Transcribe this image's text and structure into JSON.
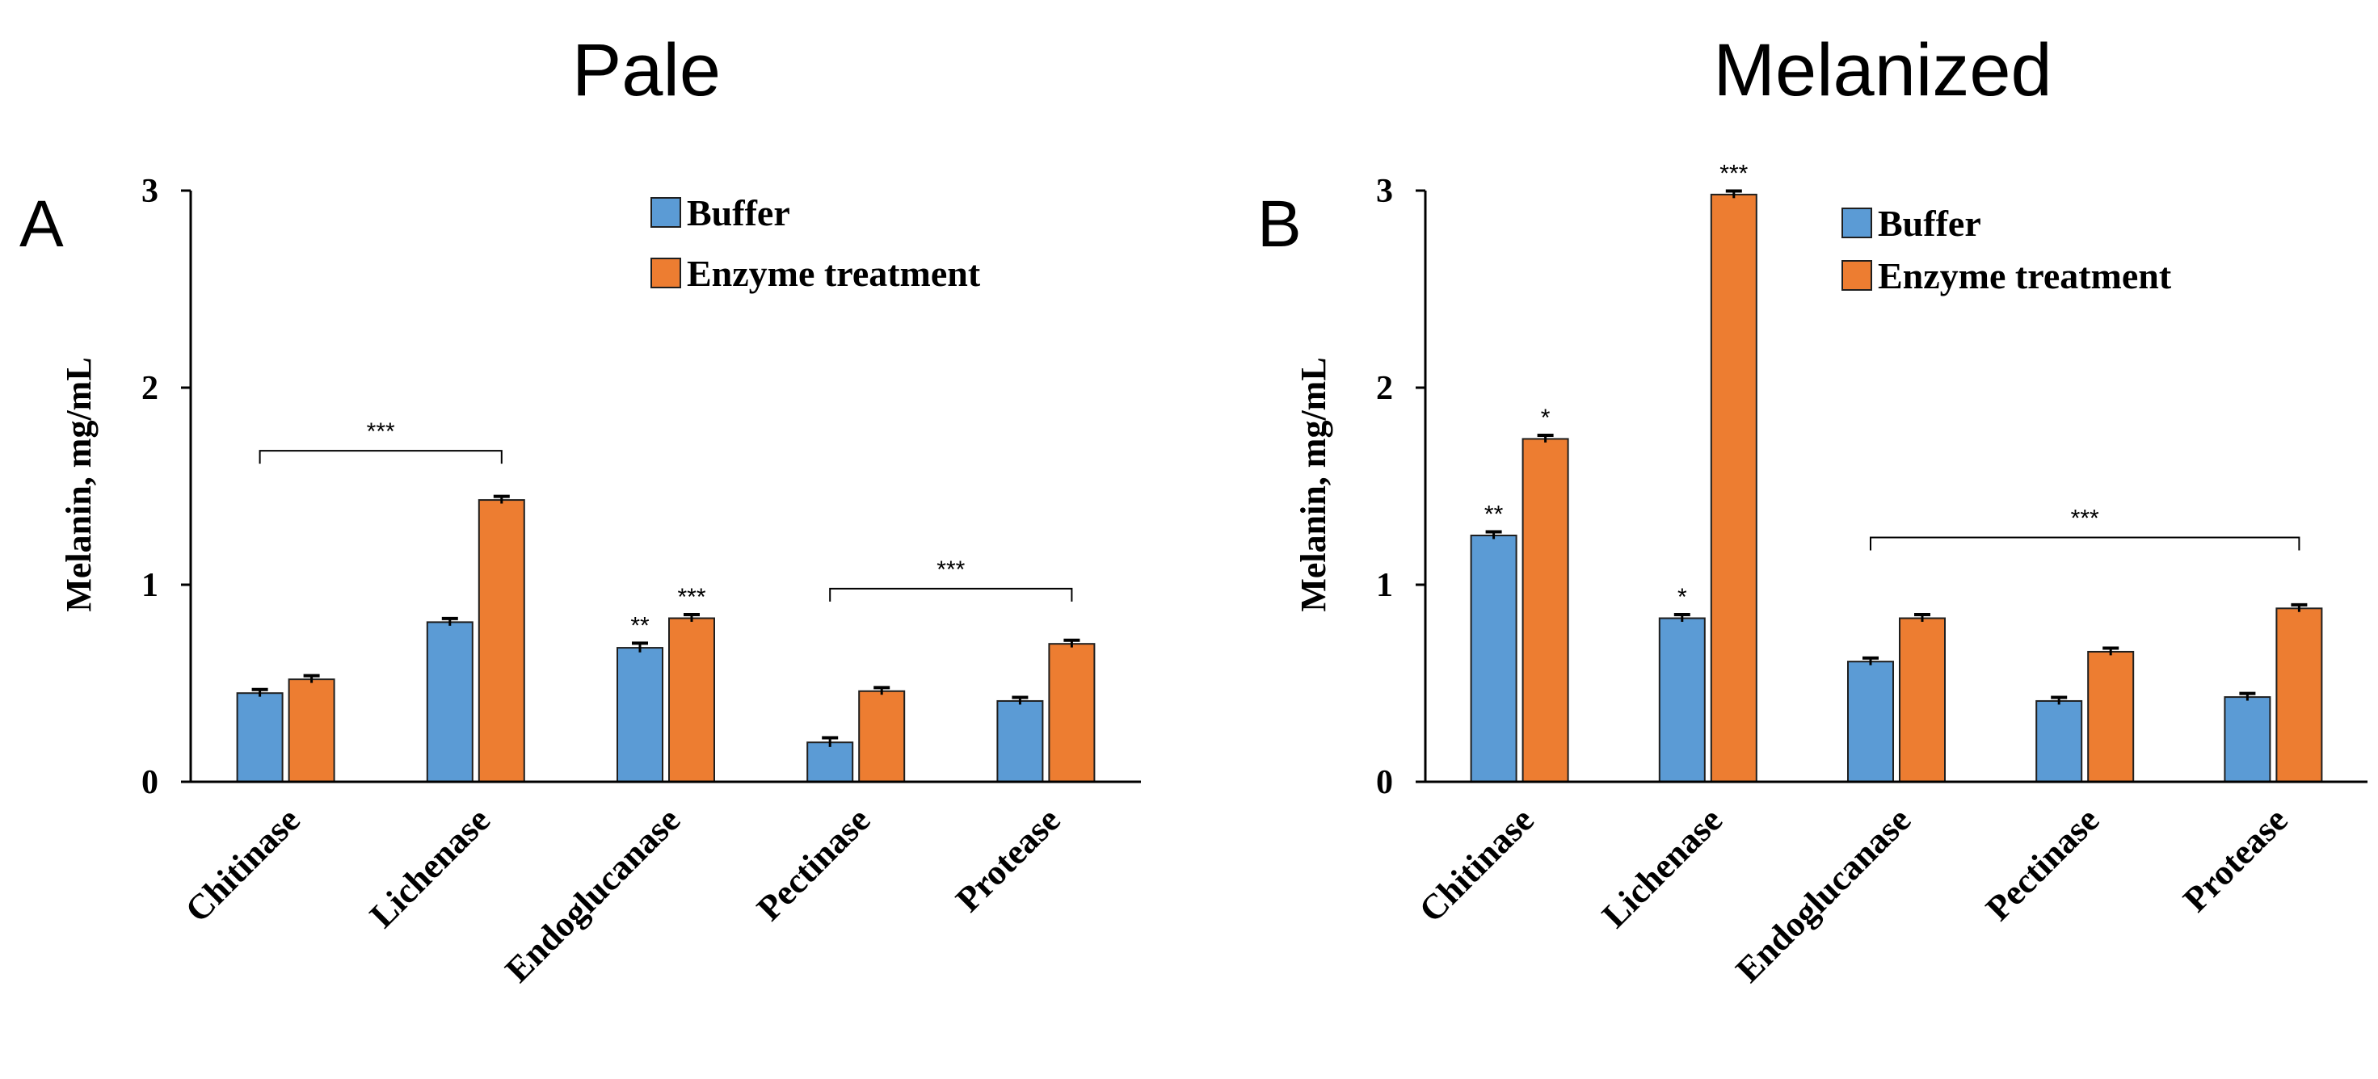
{
  "figure": {
    "colors": {
      "buffer": "#5B9BD5",
      "enzyme": "#ED7D31",
      "outline": "#1F1F1F"
    }
  },
  "chart_data": [
    {
      "type": "bar",
      "letter": "A",
      "title": "Pale",
      "xlabel": "",
      "ylabel": "Melanin, mg/mL",
      "ylim": [
        0,
        3
      ],
      "yticks": [
        "0",
        "1",
        "2",
        "3"
      ],
      "categories": [
        "Chitinase",
        "Lichenase",
        "Endoglucanase",
        "Pectinase",
        "Protease"
      ],
      "legend": {
        "position": "top-right"
      },
      "series": [
        {
          "name": "Buffer",
          "values": [
            0.45,
            0.81,
            0.68,
            0.2,
            0.41
          ],
          "errors": [
            0.01,
            0.01,
            0.015,
            0.015,
            0.01
          ],
          "significance": [
            "",
            "",
            "**",
            "",
            ""
          ]
        },
        {
          "name": "Enzyme treatment",
          "values": [
            0.52,
            1.43,
            0.83,
            0.46,
            0.7
          ],
          "errors": [
            0.01,
            0.01,
            0.01,
            0.01,
            0.01
          ],
          "significance": [
            "",
            "",
            "***",
            "",
            ""
          ]
        }
      ],
      "brackets": [
        {
          "from": 0,
          "to": 1,
          "y": 1.68,
          "label": "***"
        },
        {
          "from": 3,
          "to": 4,
          "y": 0.98,
          "label": "***"
        }
      ]
    },
    {
      "type": "bar",
      "letter": "B",
      "title": "Melanized",
      "xlabel": "",
      "ylabel": "Melanin, mg/mL",
      "ylim": [
        0,
        3
      ],
      "yticks": [
        "0",
        "1",
        "2",
        "3"
      ],
      "categories": [
        "Chitinase",
        "Lichenase",
        "Endoglucanase",
        "Pectinase",
        "Protease"
      ],
      "legend": {
        "position": "top-right"
      },
      "series": [
        {
          "name": "Buffer",
          "values": [
            1.25,
            0.83,
            0.61,
            0.41,
            0.43
          ],
          "errors": [
            0.01,
            0.01,
            0.01,
            0.01,
            0.01
          ],
          "significance": [
            "**",
            "*",
            "",
            "",
            ""
          ]
        },
        {
          "name": "Enzyme treatment",
          "values": [
            1.74,
            2.98,
            0.83,
            0.66,
            0.88
          ],
          "errors": [
            0.01,
            0.01,
            0.01,
            0.01,
            0.01
          ],
          "significance": [
            "*",
            "***",
            "",
            "",
            ""
          ]
        }
      ],
      "brackets": [
        {
          "from": 2,
          "to": 4,
          "y": 1.24,
          "label": "***"
        }
      ]
    }
  ]
}
